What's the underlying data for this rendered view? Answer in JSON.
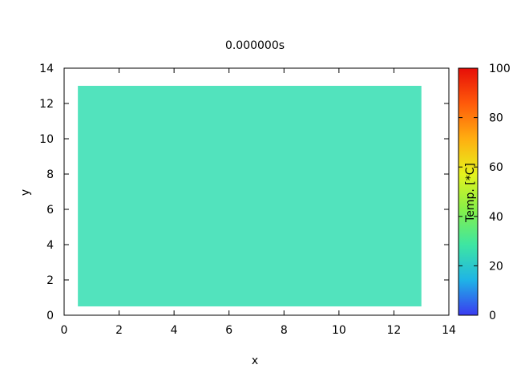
{
  "chart_data": {
    "type": "heatmap",
    "title": "0.000000s",
    "xlabel": "x",
    "ylabel": "y",
    "xlim": [
      0,
      14
    ],
    "ylim": [
      0,
      14
    ],
    "xticks": [
      0,
      2,
      4,
      6,
      8,
      10,
      12,
      14
    ],
    "yticks": [
      0,
      2,
      4,
      6,
      8,
      10,
      12,
      14
    ],
    "grid": false,
    "regions": [
      {
        "x": [
          0.5,
          13.0
        ],
        "y": [
          0.5,
          13.0
        ],
        "value": 25,
        "color": "#52e3bd"
      }
    ],
    "colorbar": {
      "label": "Temp. [*C]",
      "range": [
        0,
        100
      ],
      "ticks": [
        0,
        20,
        40,
        60,
        80,
        100
      ],
      "colormap": [
        "#3a3af0",
        "#1fb4e6",
        "#3ee6a2",
        "#86f048",
        "#e6f21c",
        "#ffae10",
        "#ff5a0a",
        "#e60e08"
      ]
    }
  }
}
